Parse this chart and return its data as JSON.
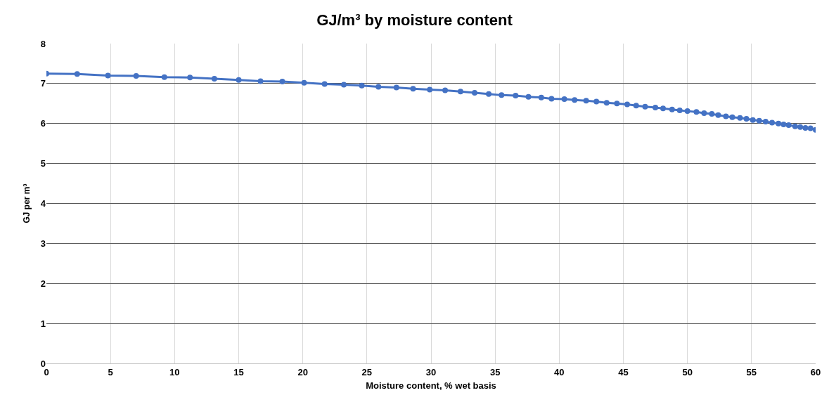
{
  "chart_data": {
    "type": "line",
    "title": "GJ/m³ by moisture content",
    "xlabel": "Moisture content, % wet basis",
    "ylabel": "GJ per m³",
    "x": [
      0,
      2.4,
      4.8,
      7.0,
      9.2,
      11.2,
      13.1,
      15.0,
      16.7,
      18.4,
      20.1,
      21.7,
      23.2,
      24.6,
      25.9,
      27.3,
      28.6,
      29.9,
      31.1,
      32.3,
      33.4,
      34.5,
      35.5,
      36.6,
      37.6,
      38.6,
      39.4,
      40.4,
      41.2,
      42.1,
      42.9,
      43.7,
      44.5,
      45.3,
      46.0,
      46.7,
      47.5,
      48.1,
      48.8,
      49.4,
      50.0,
      50.7,
      51.3,
      51.9,
      52.4,
      53.0,
      53.5,
      54.1,
      54.6,
      55.1,
      55.6,
      56.1,
      56.6,
      57.1,
      57.5,
      57.9,
      58.4,
      58.8,
      59.2,
      59.6,
      60.0
    ],
    "series": [
      {
        "color": "#4472c4",
        "values": [
          7.25,
          7.24,
          7.2,
          7.19,
          7.16,
          7.15,
          7.12,
          7.09,
          7.06,
          7.05,
          7.02,
          6.99,
          6.97,
          6.95,
          6.92,
          6.9,
          6.87,
          6.85,
          6.83,
          6.8,
          6.77,
          6.74,
          6.71,
          6.7,
          6.67,
          6.65,
          6.62,
          6.61,
          6.59,
          6.57,
          6.55,
          6.52,
          6.5,
          6.48,
          6.45,
          6.42,
          6.4,
          6.38,
          6.35,
          6.33,
          6.31,
          6.29,
          6.26,
          6.24,
          6.21,
          6.18,
          6.16,
          6.14,
          6.12,
          6.09,
          6.07,
          6.05,
          6.02,
          6.0,
          5.98,
          5.96,
          5.93,
          5.91,
          5.89,
          5.88,
          5.84
        ]
      }
    ],
    "xlim": [
      0,
      60
    ],
    "xticks": [
      0,
      5,
      10,
      15,
      20,
      25,
      30,
      35,
      40,
      45,
      50,
      55,
      60
    ],
    "ylim": [
      0,
      8
    ],
    "yticks": [
      0,
      1,
      2,
      3,
      4,
      5,
      6,
      7,
      8
    ],
    "grid": true,
    "marker": "circle",
    "line_style": "solid"
  }
}
